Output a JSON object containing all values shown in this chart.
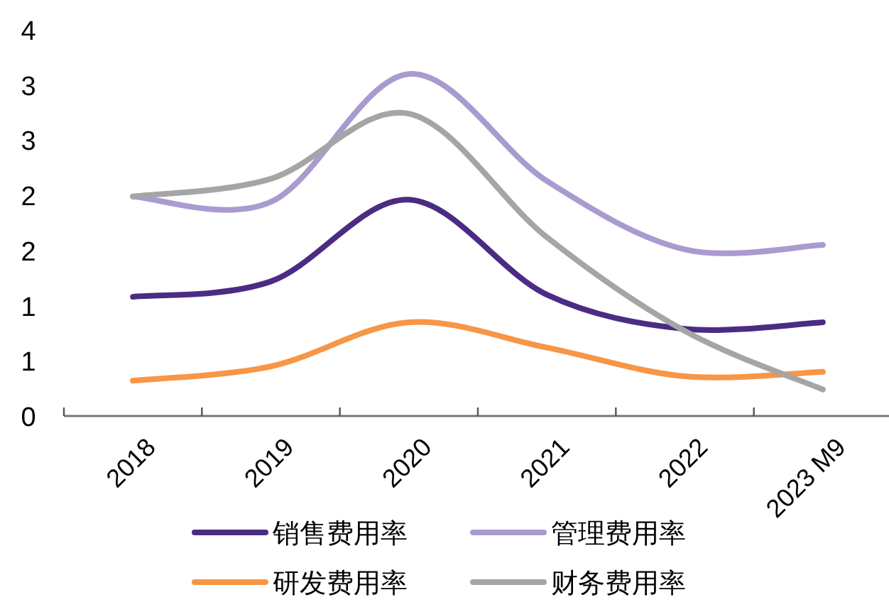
{
  "chart_data": {
    "type": "line",
    "categories": [
      "2018",
      "2019",
      "2020",
      "2021",
      "2022",
      "2023 M9"
    ],
    "ylim": [
      0,
      3.5
    ],
    "yticks": [
      0,
      {
        "value": 0.5,
        "label": "1"
      },
      1,
      {
        "value": 1.5,
        "label": "2"
      },
      2,
      {
        "value": 2.5,
        "label": "3"
      },
      3,
      {
        "value": 3.5,
        "label": "4"
      }
    ],
    "grid": false,
    "legend": "bottom",
    "marker": "none",
    "line_style": "solid",
    "series": [
      {
        "name": "销售费用率",
        "color": "#4b2c83",
        "values": [
          1.08,
          1.22,
          1.96,
          1.1,
          0.79,
          0.85
        ]
      },
      {
        "name": "管理费用率",
        "color": "#a99bd0",
        "values": [
          1.99,
          1.94,
          3.1,
          2.13,
          1.51,
          1.55
        ]
      },
      {
        "name": "研发费用率",
        "color": "#f79646",
        "values": [
          0.32,
          0.45,
          0.85,
          0.62,
          0.36,
          0.4
        ]
      },
      {
        "name": "财务费用率",
        "color": "#a5a5a5",
        "values": [
          1.99,
          2.15,
          2.74,
          1.62,
          0.77,
          0.24
        ]
      }
    ]
  }
}
